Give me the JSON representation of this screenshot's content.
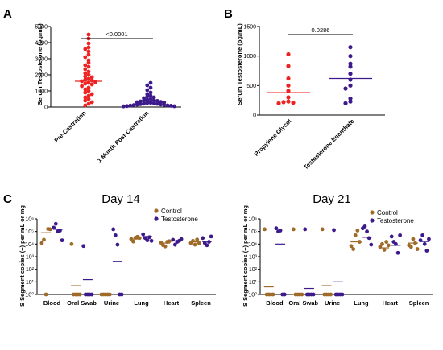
{
  "colors": {
    "red": "#ee2222",
    "purple": "#3d1a8c",
    "brown": "#a06a28",
    "pink_band": "#f5d6f0"
  },
  "chart_data": [
    {
      "panel": "A",
      "type": "scatter",
      "ylabel": "Serum Testosterone (pg/mL)",
      "ylim": [
        0,
        5000
      ],
      "yticks": [
        0,
        1000,
        2000,
        3000,
        4000,
        5000
      ],
      "categories": [
        "Pre-Castration",
        "1 Month Post-Castration"
      ],
      "annotation": "<0.0001",
      "series": [
        {
          "values": [
            4500,
            4250,
            3950,
            3700,
            3600,
            3450,
            3250,
            3100,
            2900,
            2750,
            2600,
            2500,
            2350,
            2200,
            2100,
            2000,
            1900,
            1850,
            1750,
            1700,
            1650,
            1600,
            1550,
            1500,
            1450,
            1400,
            1300,
            1200,
            1100,
            1000,
            900,
            800,
            700,
            600,
            500,
            400,
            300,
            200,
            100
          ],
          "center": 1600,
          "error": [
            1450,
            1800
          ]
        },
        {
          "values": [
            1500,
            1350,
            1200,
            1050,
            900,
            800,
            700,
            650,
            600,
            550,
            500,
            450,
            420,
            400,
            380,
            350,
            320,
            300,
            280,
            260,
            250,
            230,
            210,
            200,
            180,
            160,
            150,
            130,
            120,
            100,
            90,
            80,
            60,
            50,
            40
          ],
          "center": 350,
          "error": [
            250,
            450
          ]
        }
      ]
    },
    {
      "panel": "B",
      "type": "scatter",
      "ylabel": "Serum Testosterone (pg/mL)",
      "ylim": [
        0,
        1500
      ],
      "yticks": [
        0,
        500,
        1000,
        1500
      ],
      "categories": [
        "Propylene Glycol",
        "Testosterone Enanthate"
      ],
      "annotation": "0.0286",
      "series": [
        {
          "values": [
            1030,
            830,
            620,
            500,
            410,
            300,
            230,
            220,
            210,
            200
          ],
          "center": 380
        },
        {
          "values": [
            1150,
            1000,
            870,
            820,
            700,
            600,
            500,
            450,
            280,
            230,
            200
          ],
          "center": 620
        }
      ]
    },
    {
      "panel": "C",
      "type": "scatter",
      "title": "Day 14",
      "ylabel": "S Segment copies (+) per mL or mg",
      "yscale": "log",
      "ylim": [
        1,
        1000000
      ],
      "ytick_labels": [
        "10⁰",
        "10¹",
        "10²",
        "10³",
        "10⁴",
        "10⁵",
        "10⁶"
      ],
      "categories": [
        "Blood",
        "Oral Swab",
        "Urine",
        "Lung",
        "Heart",
        "Spleen"
      ],
      "legend": [
        "Control",
        "Testosterone"
      ],
      "legend_position": "top-right",
      "series": [
        {
          "values": [
            [
              12000,
              22000,
              1,
              160000,
              150000
            ],
            [
              10000,
              1,
              1,
              1,
              1
            ],
            [
              1,
              1,
              1,
              1,
              1
            ],
            [
              25000,
              16000,
              32000,
              38000,
              30000
            ],
            [
              13000,
              8000,
              6500,
              15000,
              17000
            ],
            [
              12000,
              18000,
              9000,
              23000,
              12000
            ]
          ],
          "center": [
            80000,
            5,
            1,
            25000,
            12000,
            15000
          ]
        },
        {
          "values": [
            [
              200000,
              400000,
              100000,
              120000,
              20000
            ],
            [
              7000,
              1,
              1,
              1,
              1
            ],
            [
              150000,
              50000,
              9000,
              1,
              1
            ],
            [
              60000,
              30000,
              20000,
              35000,
              18000
            ],
            [
              22000,
              9000,
              15000,
              18000,
              25000
            ],
            [
              30000,
              12000,
              8000,
              15000,
              40000
            ]
          ],
          "center": [
            150000,
            15,
            400,
            40000,
            18000,
            16000
          ]
        }
      ]
    },
    {
      "panel": "",
      "type": "scatter",
      "title": "Day 21",
      "ylabel": "S Segment copies (+) per mL or mg",
      "yscale": "log",
      "ylim": [
        1,
        1000000
      ],
      "ytick_labels": [
        "10⁰",
        "10¹",
        "10²",
        "10³",
        "10⁴",
        "10⁵",
        "10⁶"
      ],
      "categories": [
        "Blood",
        "Oral Swab",
        "Urine",
        "Lung",
        "Heart",
        "Spleen"
      ],
      "legend": [
        "Control",
        "Testosterone"
      ],
      "legend_position": "top-right",
      "series": [
        {
          "values": [
            [
              150000,
              1,
              1,
              1,
              1
            ],
            [
              150000,
              1,
              1,
              1,
              1
            ],
            [
              150000,
              1,
              1,
              1,
              1
            ],
            [
              7000,
              4000,
              50000,
              120000,
              15000
            ],
            [
              6000,
              10000,
              3500,
              15000,
              8000
            ],
            [
              8000,
              6000,
              25000,
              12000,
              4000
            ]
          ],
          "center": [
            4,
            1,
            5,
            15000,
            5000,
            12000
          ]
        },
        {
          "values": [
            [
              180000,
              100000,
              120000,
              1,
              1
            ],
            [
              150000,
              1,
              1,
              1,
              1
            ],
            [
              130000,
              1,
              1,
              1,
              1
            ],
            [
              180000,
              250000,
              100000,
              30000,
              9000
            ],
            [
              40000,
              15000,
              10000,
              2000,
              50000
            ],
            [
              20000,
              50000,
              10000,
              3000,
              25000
            ]
          ],
          "center": [
            10000,
            3,
            10,
            35000,
            8000,
            16000
          ]
        }
      ]
    }
  ]
}
